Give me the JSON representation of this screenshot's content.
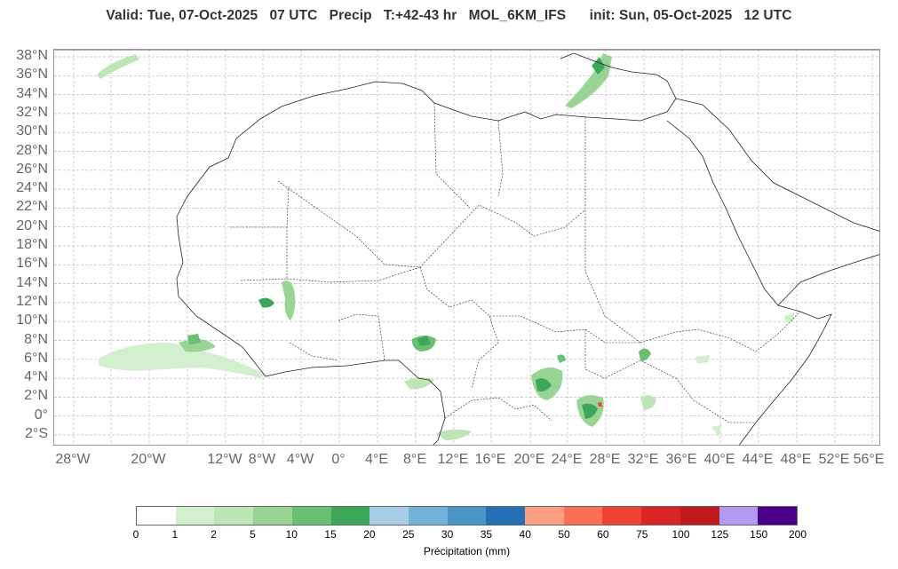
{
  "title": "Valid: Tue, 07-Oct-2025   07 UTC   Precip   T:+42-43 hr   MOL_6KM_IFS      init: Sun, 05-Oct-2025   12 UTC",
  "lat_labels": [
    "38°N",
    "36°N",
    "34°N",
    "32°N",
    "30°N",
    "28°N",
    "26°N",
    "24°N",
    "22°N",
    "20°N",
    "18°N",
    "16°N",
    "14°N",
    "12°N",
    "10°N",
    "8°N",
    "6°N",
    "4°N",
    "2°N",
    "0°",
    "2°S"
  ],
  "lon_labels": [
    "28°W",
    "20°W",
    "12°W",
    "8°W",
    "4°W",
    "0°",
    "4°E",
    "8°E",
    "12°E",
    "16°E",
    "20°E",
    "24°E",
    "28°E",
    "32°E",
    "36°E",
    "40°E",
    "44°E",
    "48°E",
    "52°E",
    "56°E"
  ],
  "colorbar": {
    "ticks": [
      "0",
      "1",
      "2",
      "5",
      "10",
      "15",
      "20",
      "25",
      "30",
      "35",
      "40",
      "50",
      "60",
      "75",
      "100",
      "125",
      "150",
      "200"
    ],
    "colors": [
      "#ffffff",
      "#d3efd0",
      "#bde5b6",
      "#98d594",
      "#6bbf72",
      "#3ca65a",
      "#a7cde4",
      "#72b1d8",
      "#4a96c9",
      "#2370b5",
      "#fb9e83",
      "#fa6f55",
      "#f04232",
      "#d92525",
      "#c01a1e",
      "#b499f0",
      "#4b0089"
    ],
    "label": "Précipitation (mm)"
  },
  "precip_areas": [
    {
      "region": "Atlantic (~24°W, 37°N)",
      "mm": "1-2"
    },
    {
      "region": "Eastern Mediterranean / Turkey",
      "mm": "2-15"
    },
    {
      "region": "Atlantic off Guinea coast",
      "mm": "1-5"
    },
    {
      "region": "Burkina Faso / Mali",
      "mm": "2-15"
    },
    {
      "region": "Northern Nigeria",
      "mm": "5-15"
    },
    {
      "region": "Central African Republic",
      "mm": "5-20"
    },
    {
      "region": "South Sudan / DR Congo",
      "mm": "5-60"
    },
    {
      "region": "Ethiopia",
      "mm": "2-10"
    },
    {
      "region": "Somalia",
      "mm": "1-2"
    }
  ]
}
